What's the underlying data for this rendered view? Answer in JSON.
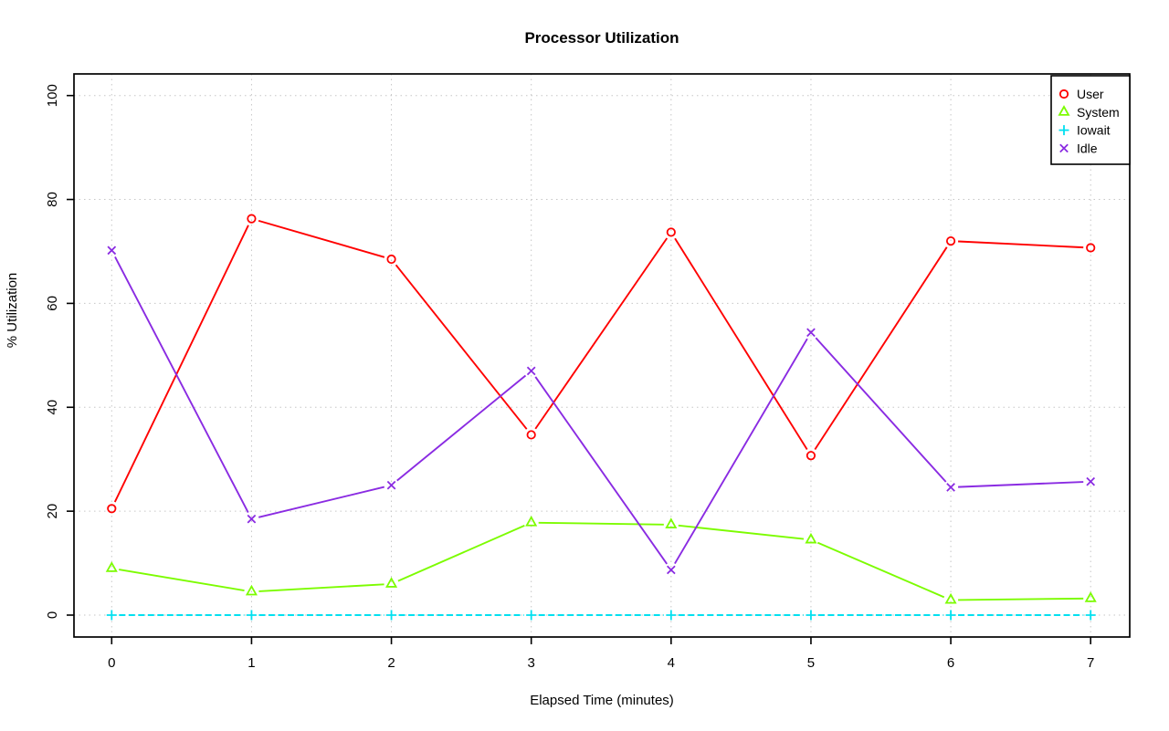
{
  "chart_data": {
    "type": "line",
    "title": "Processor Utilization",
    "xlabel": "Elapsed Time (minutes)",
    "ylabel": "% Utilization",
    "x": [
      0,
      1,
      2,
      3,
      4,
      5,
      6,
      7
    ],
    "xticks": [
      0,
      1,
      2,
      3,
      4,
      5,
      6,
      7
    ],
    "yticks": [
      0,
      20,
      40,
      60,
      80,
      100
    ],
    "ylim": [
      0,
      100
    ],
    "grid": "dotted both axes",
    "legend_position": "top-right",
    "grid_color": "#c6c6c6",
    "series": [
      {
        "name": "User",
        "color": "#ff0000",
        "marker": "circle",
        "linestyle": "solid",
        "values": [
          20.5,
          76.3,
          68.5,
          34.7,
          73.7,
          30.7,
          72.0,
          70.7
        ]
      },
      {
        "name": "System",
        "color": "#7cfc00",
        "marker": "triangle",
        "linestyle": "solid",
        "values": [
          9.0,
          4.5,
          6.0,
          17.8,
          17.4,
          14.5,
          2.9,
          3.2
        ]
      },
      {
        "name": "Iowait",
        "color": "#00e0f0",
        "marker": "plus",
        "linestyle": "dashed",
        "values": [
          0,
          0,
          0,
          0,
          0,
          0,
          0,
          0
        ]
      },
      {
        "name": "Idle",
        "color": "#8a2be2",
        "marker": "x",
        "linestyle": "solid",
        "values": [
          70.2,
          18.5,
          25.0,
          47.0,
          8.7,
          54.4,
          24.6,
          25.7
        ]
      }
    ]
  }
}
